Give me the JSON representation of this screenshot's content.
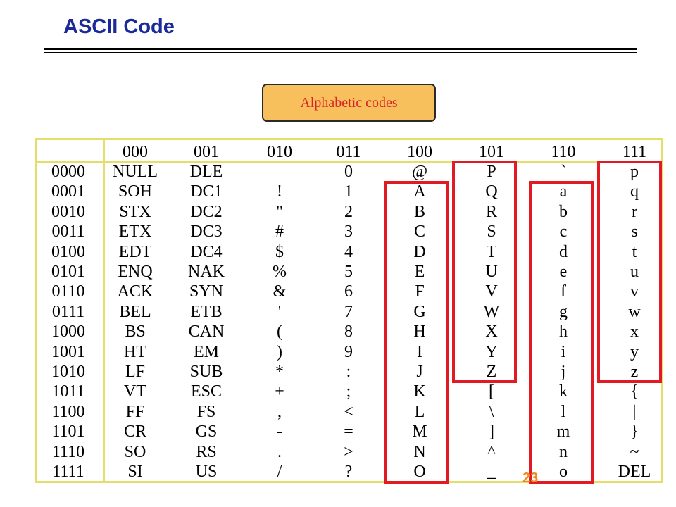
{
  "title": "ASCII Code",
  "callout": "Alphabetic codes",
  "page_number": "23",
  "columns": [
    "000",
    "001",
    "010",
    "011",
    "100",
    "101",
    "110",
    "111"
  ],
  "rows": [
    {
      "code": "0000",
      "cells": [
        "NULL",
        "DLE",
        "",
        "0",
        "@",
        "P",
        "`",
        "p"
      ]
    },
    {
      "code": "0001",
      "cells": [
        "SOH",
        "DC1",
        "!",
        "1",
        "A",
        "Q",
        "a",
        "q"
      ]
    },
    {
      "code": "0010",
      "cells": [
        "STX",
        "DC2",
        "\"",
        "2",
        "B",
        "R",
        "b",
        "r"
      ]
    },
    {
      "code": "0011",
      "cells": [
        "ETX",
        "DC3",
        "#",
        "3",
        "C",
        "S",
        "c",
        "s"
      ]
    },
    {
      "code": "0100",
      "cells": [
        "EDT",
        "DC4",
        "$",
        "4",
        "D",
        "T",
        "d",
        "t"
      ]
    },
    {
      "code": "0101",
      "cells": [
        "ENQ",
        "NAK",
        "%",
        "5",
        "E",
        "U",
        "e",
        "u"
      ]
    },
    {
      "code": "0110",
      "cells": [
        "ACK",
        "SYN",
        "&",
        "6",
        "F",
        "V",
        "f",
        "v"
      ]
    },
    {
      "code": "0111",
      "cells": [
        "BEL",
        "ETB",
        "'",
        "7",
        "G",
        "W",
        "g",
        "w"
      ]
    },
    {
      "code": "1000",
      "cells": [
        "BS",
        "CAN",
        "(",
        "8",
        "H",
        "X",
        "h",
        "x"
      ]
    },
    {
      "code": "1001",
      "cells": [
        "HT",
        "EM",
        ")",
        "9",
        "I",
        "Y",
        "i",
        "y"
      ]
    },
    {
      "code": "1010",
      "cells": [
        "LF",
        "SUB",
        "*",
        ":",
        "J",
        "Z",
        "j",
        "z"
      ]
    },
    {
      "code": "1011",
      "cells": [
        "VT",
        "ESC",
        "+",
        ";",
        "K",
        "[",
        "k",
        "{"
      ]
    },
    {
      "code": "1100",
      "cells": [
        "FF",
        "FS",
        ",",
        "<",
        "L",
        "\\",
        "l",
        "|"
      ]
    },
    {
      "code": "1101",
      "cells": [
        "CR",
        "GS",
        "-",
        "=",
        "M",
        "]",
        "m",
        "}"
      ]
    },
    {
      "code": "1110",
      "cells": [
        "SO",
        "RS",
        ".",
        ">",
        "N",
        "^",
        "n",
        "~"
      ]
    },
    {
      "code": "1111",
      "cells": [
        "SI",
        "US",
        "/",
        "?",
        "O",
        "_",
        "o",
        "DEL"
      ]
    }
  ],
  "colors": {
    "title": "#1a2a99",
    "callout_fill": "#f8c05c",
    "callout_text": "#d8252a",
    "grid_line": "#e4de6a",
    "highlight_box": "#e21a24",
    "page_number": "#f08a1a"
  }
}
